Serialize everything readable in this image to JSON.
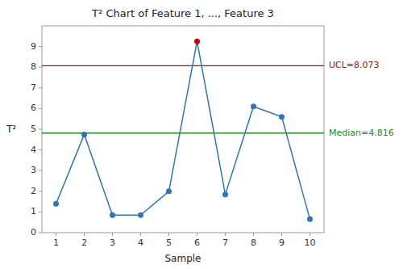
{
  "chart_data": {
    "type": "line",
    "title": "T² Chart of Feature 1, ..., Feature 3",
    "xlabel": "Sample",
    "ylabel": "T²",
    "x": [
      1,
      2,
      3,
      4,
      5,
      6,
      7,
      8,
      9,
      10
    ],
    "values": [
      1.4,
      4.75,
      0.85,
      0.85,
      2.0,
      9.25,
      1.85,
      6.1,
      5.6,
      0.65
    ],
    "color": "#2E75B6",
    "colors": [
      "#2E75B6",
      "#2E75B6",
      "#2E75B6",
      "#2E75B6",
      "#2E75B6",
      "#CC0000",
      "#2E75B6",
      "#2E75B6",
      "#2E75B6",
      "#2E75B6"
    ],
    "marker": "circle",
    "xlim": [
      0.5,
      10.5
    ],
    "xticks": [
      1,
      2,
      3,
      4,
      5,
      6,
      7,
      8,
      9,
      10
    ],
    "ylim": [
      0,
      10
    ],
    "yticks": [
      0,
      1,
      2,
      3,
      4,
      5,
      6,
      7,
      8,
      9
    ],
    "grid": false,
    "annotations": [
      {
        "y": 8.073,
        "label": "UCL=8.073",
        "color": "#8B1A1A"
      },
      {
        "y": 4.816,
        "label": "Median=4.816",
        "color": "#228B22"
      }
    ]
  }
}
